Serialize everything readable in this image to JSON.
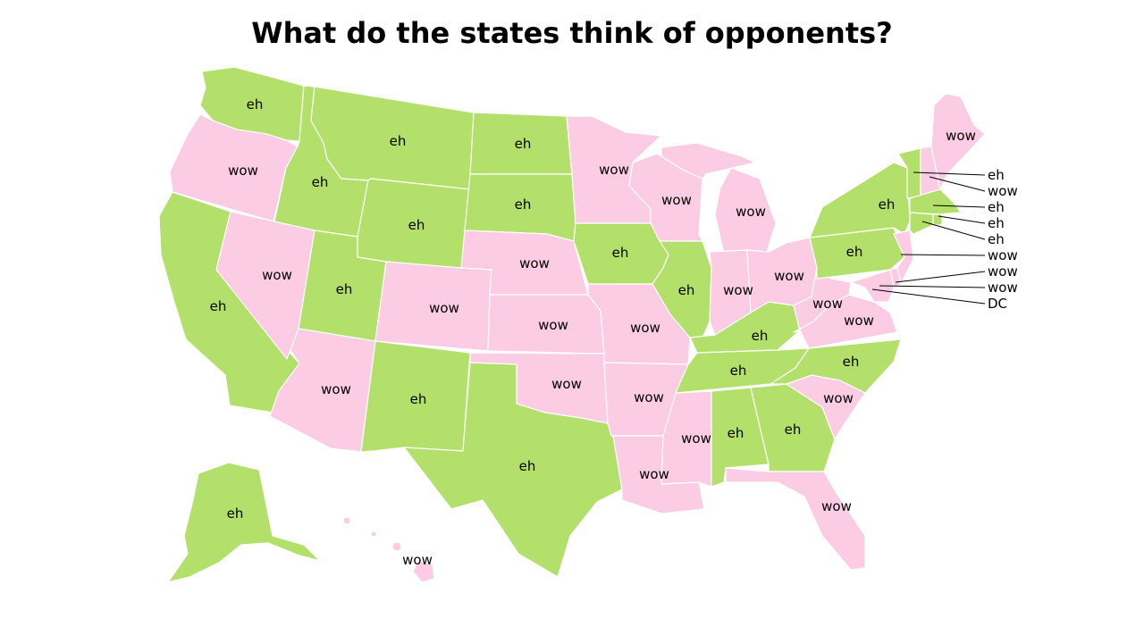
{
  "title": "What do the states think of opponents?",
  "colors": {
    "eh": "#b3df6b",
    "wow": "#fcccE4",
    "label": "#000000",
    "border": "#ffffff"
  },
  "legend_values": [
    "eh",
    "wow"
  ],
  "states": [
    {
      "id": "WA",
      "label": "eh"
    },
    {
      "id": "OR",
      "label": "wow"
    },
    {
      "id": "CA",
      "label": "eh"
    },
    {
      "id": "NV",
      "label": "wow"
    },
    {
      "id": "ID",
      "label": "eh"
    },
    {
      "id": "MT",
      "label": "eh"
    },
    {
      "id": "WY",
      "label": "eh"
    },
    {
      "id": "UT",
      "label": "eh"
    },
    {
      "id": "AZ",
      "label": "wow"
    },
    {
      "id": "CO",
      "label": "wow"
    },
    {
      "id": "NM",
      "label": "eh"
    },
    {
      "id": "ND",
      "label": "eh"
    },
    {
      "id": "SD",
      "label": "eh"
    },
    {
      "id": "NE",
      "label": "wow"
    },
    {
      "id": "KS",
      "label": "wow"
    },
    {
      "id": "OK",
      "label": "wow"
    },
    {
      "id": "TX",
      "label": "eh"
    },
    {
      "id": "MN",
      "label": "wow"
    },
    {
      "id": "IA",
      "label": "eh"
    },
    {
      "id": "MO",
      "label": "wow"
    },
    {
      "id": "AR",
      "label": "wow"
    },
    {
      "id": "LA",
      "label": "wow"
    },
    {
      "id": "WI",
      "label": "wow"
    },
    {
      "id": "IL",
      "label": "eh"
    },
    {
      "id": "MI",
      "label": "wow"
    },
    {
      "id": "IN",
      "label": "wow"
    },
    {
      "id": "OH",
      "label": "wow"
    },
    {
      "id": "KY",
      "label": "eh"
    },
    {
      "id": "TN",
      "label": "eh"
    },
    {
      "id": "MS",
      "label": "wow"
    },
    {
      "id": "AL",
      "label": "eh"
    },
    {
      "id": "GA",
      "label": "eh"
    },
    {
      "id": "FL",
      "label": "wow"
    },
    {
      "id": "SC",
      "label": "wow"
    },
    {
      "id": "NC",
      "label": "eh"
    },
    {
      "id": "VA",
      "label": "wow"
    },
    {
      "id": "WV",
      "label": "wow"
    },
    {
      "id": "PA",
      "label": "eh"
    },
    {
      "id": "NY",
      "label": "eh"
    },
    {
      "id": "ME",
      "label": "wow"
    },
    {
      "id": "AK",
      "label": "eh"
    },
    {
      "id": "HI",
      "label": "wow"
    },
    {
      "id": "VT",
      "label": "eh"
    },
    {
      "id": "NH",
      "label": "wow"
    },
    {
      "id": "MA",
      "label": "eh"
    },
    {
      "id": "RI",
      "label": "eh"
    },
    {
      "id": "CT",
      "label": "eh"
    },
    {
      "id": "NJ",
      "label": "wow"
    },
    {
      "id": "DE",
      "label": "wow"
    },
    {
      "id": "MD",
      "label": "wow"
    },
    {
      "id": "DC",
      "label": "DC"
    }
  ]
}
